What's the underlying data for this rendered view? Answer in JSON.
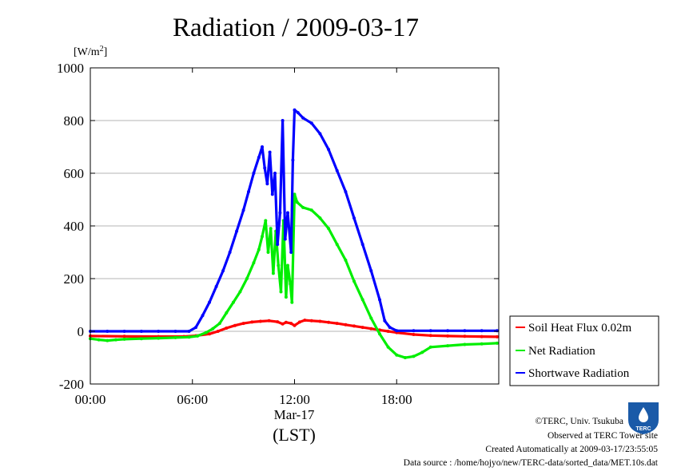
{
  "page": {
    "title": "Radiation / 2009-03-17",
    "unit_label": "[W/m2]",
    "unit_base": "[W/m",
    "unit_sup": "2",
    "unit_close": "]",
    "x_date_label": "Mar-17",
    "x_axis_label": "(LST)",
    "credits": [
      "©TERC, Univ. Tsukuba",
      "Observed at TERC Tower site",
      "Created Automatically at 2009-03-17/23:55:05",
      "Data source : /home/hojyo/new/TERC-data/sorted_data/MET.10s.dat"
    ],
    "logo_text": "TERC"
  },
  "chart_data": {
    "type": "line",
    "title": "Radiation / 2009-03-17",
    "ylabel": "[W/m2]",
    "xlabel": "(LST)",
    "xlim": [
      0,
      24
    ],
    "ylim": [
      -200,
      1000
    ],
    "x_ticks": [
      0,
      6,
      12,
      18
    ],
    "x_tick_labels": [
      "00:00",
      "06:00",
      "12:00",
      "18:00"
    ],
    "y_ticks": [
      -200,
      0,
      200,
      400,
      600,
      800,
      1000
    ],
    "y_tick_labels": [
      "-200",
      "0",
      "200",
      "400",
      "600",
      "800",
      "1000"
    ],
    "grid": true,
    "legend_position": "right",
    "series": [
      {
        "name": "Soil Heat Flux 0.02m",
        "color": "#ff0000",
        "points": [
          [
            0,
            -18
          ],
          [
            2,
            -19
          ],
          [
            4,
            -20
          ],
          [
            5.5,
            -20
          ],
          [
            6.2,
            -17
          ],
          [
            7,
            -10
          ],
          [
            7.5,
            0
          ],
          [
            8,
            12
          ],
          [
            8.5,
            22
          ],
          [
            9,
            30
          ],
          [
            9.5,
            35
          ],
          [
            10,
            38
          ],
          [
            10.5,
            40
          ],
          [
            11,
            36
          ],
          [
            11.3,
            28
          ],
          [
            11.5,
            34
          ],
          [
            11.8,
            30
          ],
          [
            12,
            22
          ],
          [
            12.3,
            35
          ],
          [
            12.6,
            42
          ],
          [
            13,
            40
          ],
          [
            13.5,
            38
          ],
          [
            14,
            34
          ],
          [
            14.5,
            30
          ],
          [
            15,
            25
          ],
          [
            15.5,
            20
          ],
          [
            16,
            15
          ],
          [
            16.5,
            10
          ],
          [
            17,
            5
          ],
          [
            17.5,
            0
          ],
          [
            18,
            -5
          ],
          [
            19,
            -12
          ],
          [
            20,
            -16
          ],
          [
            21,
            -18
          ],
          [
            22,
            -19
          ],
          [
            23,
            -20
          ],
          [
            23.9,
            -21
          ]
        ]
      },
      {
        "name": "Net Radiation",
        "color": "#00ee00",
        "points": [
          [
            0,
            -28
          ],
          [
            0.5,
            -32
          ],
          [
            1,
            -35
          ],
          [
            1.5,
            -32
          ],
          [
            2,
            -30
          ],
          [
            3,
            -28
          ],
          [
            4,
            -26
          ],
          [
            5,
            -24
          ],
          [
            5.8,
            -22
          ],
          [
            6.3,
            -18
          ],
          [
            6.8,
            -5
          ],
          [
            7.2,
            10
          ],
          [
            7.6,
            30
          ],
          [
            8,
            70
          ],
          [
            8.4,
            110
          ],
          [
            8.8,
            150
          ],
          [
            9.2,
            200
          ],
          [
            9.6,
            260
          ],
          [
            9.9,
            310
          ],
          [
            10.1,
            360
          ],
          [
            10.3,
            420
          ],
          [
            10.45,
            300
          ],
          [
            10.6,
            390
          ],
          [
            10.75,
            220
          ],
          [
            10.9,
            380
          ],
          [
            11.05,
            250
          ],
          [
            11.2,
            150
          ],
          [
            11.35,
            420
          ],
          [
            11.5,
            130
          ],
          [
            11.6,
            250
          ],
          [
            11.75,
            180
          ],
          [
            11.85,
            110
          ],
          [
            12,
            520
          ],
          [
            12.15,
            490
          ],
          [
            12.5,
            470
          ],
          [
            13,
            460
          ],
          [
            13.5,
            430
          ],
          [
            14,
            390
          ],
          [
            14.5,
            330
          ],
          [
            15,
            270
          ],
          [
            15.5,
            190
          ],
          [
            16,
            120
          ],
          [
            16.5,
            50
          ],
          [
            17,
            -10
          ],
          [
            17.5,
            -60
          ],
          [
            18,
            -90
          ],
          [
            18.5,
            -100
          ],
          [
            19,
            -95
          ],
          [
            19.5,
            -80
          ],
          [
            20,
            -60
          ],
          [
            21,
            -55
          ],
          [
            22,
            -50
          ],
          [
            23,
            -48
          ],
          [
            23.9,
            -45
          ]
        ]
      },
      {
        "name": "Shortwave Radiation",
        "color": "#0000ff",
        "points": [
          [
            0,
            0
          ],
          [
            1,
            0
          ],
          [
            2,
            0
          ],
          [
            3,
            0
          ],
          [
            4,
            0
          ],
          [
            5,
            0
          ],
          [
            5.8,
            0
          ],
          [
            6.2,
            15
          ],
          [
            6.6,
            60
          ],
          [
            7,
            110
          ],
          [
            7.4,
            170
          ],
          [
            7.8,
            230
          ],
          [
            8.2,
            300
          ],
          [
            8.6,
            380
          ],
          [
            9,
            460
          ],
          [
            9.3,
            530
          ],
          [
            9.6,
            600
          ],
          [
            9.9,
            660
          ],
          [
            10.1,
            700
          ],
          [
            10.25,
            620
          ],
          [
            10.4,
            560
          ],
          [
            10.55,
            680
          ],
          [
            10.7,
            520
          ],
          [
            10.85,
            600
          ],
          [
            11,
            330
          ],
          [
            11.15,
            450
          ],
          [
            11.3,
            800
          ],
          [
            11.45,
            350
          ],
          [
            11.6,
            450
          ],
          [
            11.8,
            300
          ],
          [
            11.9,
            650
          ],
          [
            12,
            840
          ],
          [
            12.2,
            830
          ],
          [
            12.5,
            810
          ],
          [
            13,
            790
          ],
          [
            13.5,
            750
          ],
          [
            14,
            690
          ],
          [
            14.5,
            610
          ],
          [
            15,
            530
          ],
          [
            15.5,
            430
          ],
          [
            16,
            330
          ],
          [
            16.5,
            230
          ],
          [
            17,
            120
          ],
          [
            17.3,
            40
          ],
          [
            17.6,
            15
          ],
          [
            18,
            2
          ],
          [
            19,
            2
          ],
          [
            20,
            2
          ],
          [
            21,
            2
          ],
          [
            22,
            2
          ],
          [
            23,
            2
          ],
          [
            23.9,
            2
          ]
        ]
      }
    ]
  }
}
